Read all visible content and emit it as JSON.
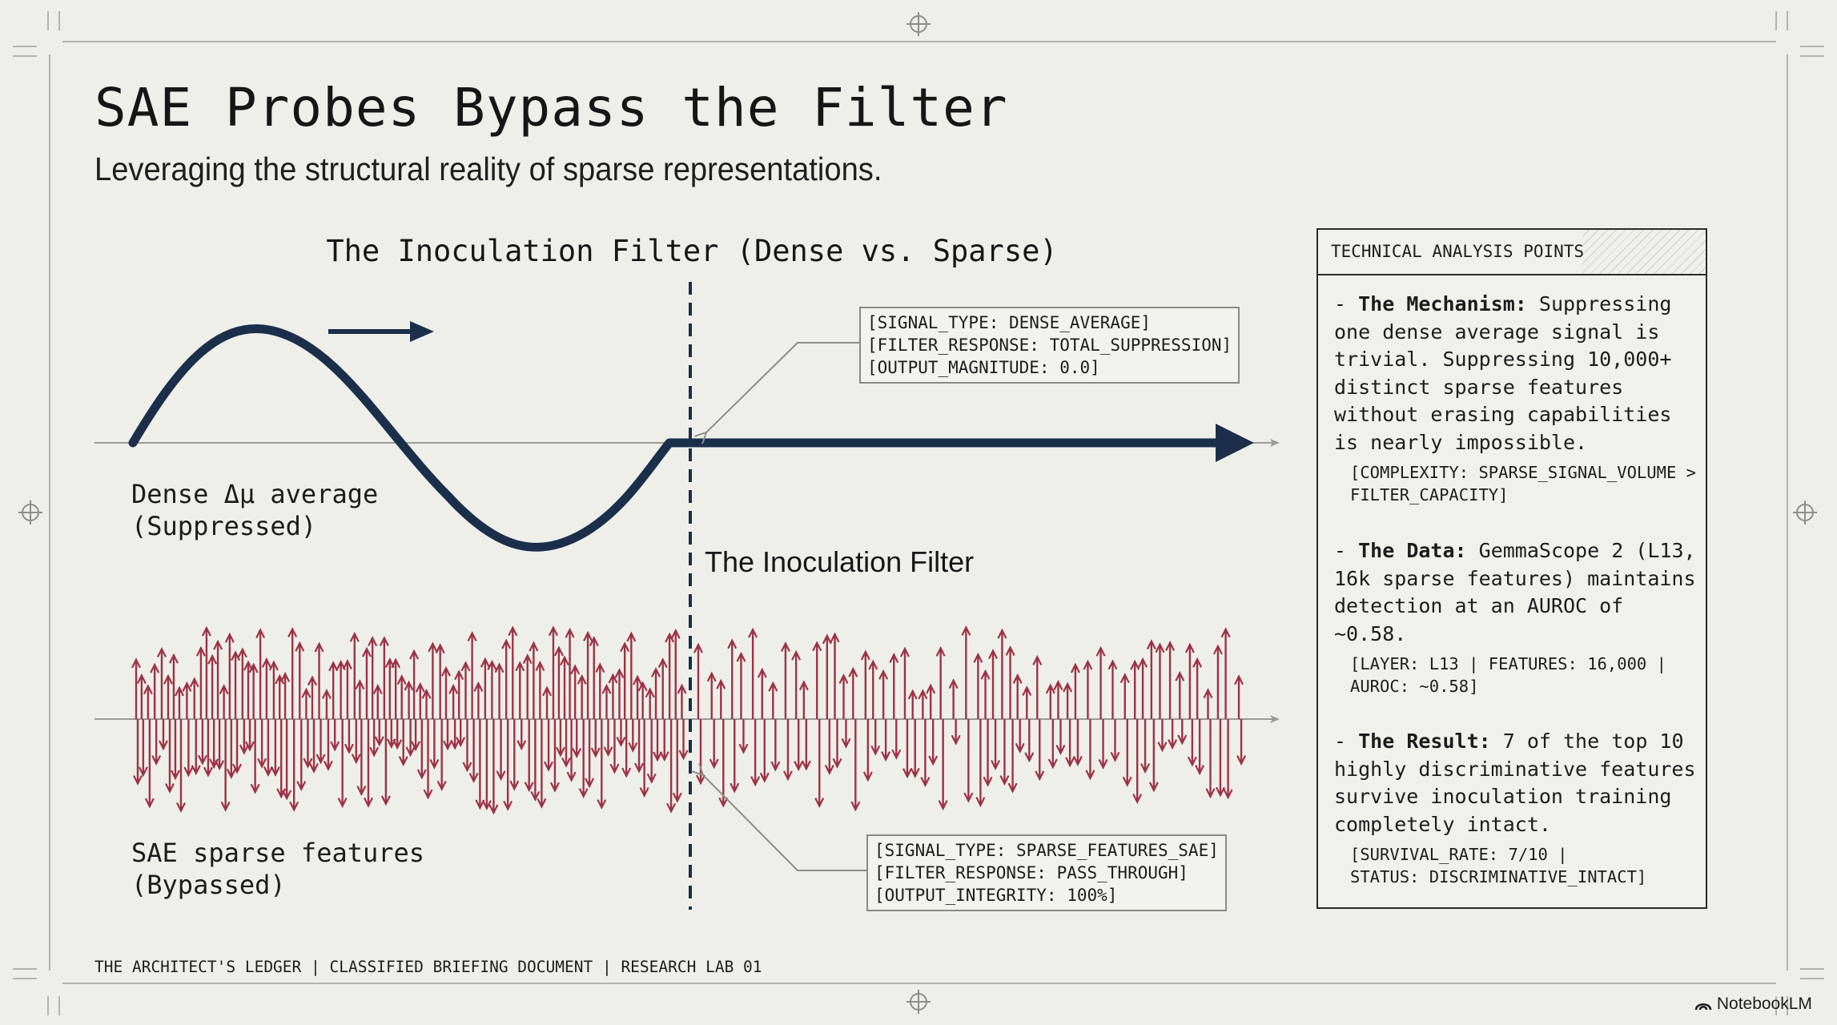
{
  "slide": {
    "title": "SAE Probes Bypass the Filter",
    "subtitle": "Leveraging the structural reality of sparse representations."
  },
  "diagram": {
    "heading": "The Inoculation Filter (Dense vs. Sparse)",
    "filter_label": "The Inoculation Filter",
    "dense_label_line1": "Dense Δμ average",
    "dense_label_line2": "(Suppressed)",
    "sparse_label_line1": "SAE sparse features",
    "sparse_label_line2": "(Bypassed)",
    "dense_callout": {
      "line1": "[SIGNAL_TYPE: DENSE_AVERAGE]",
      "line2": "[FILTER_RESPONSE: TOTAL_SUPPRESSION]",
      "line3": "[OUTPUT_MAGNITUDE: 0.0]"
    },
    "sparse_callout": {
      "line1": "[SIGNAL_TYPE: SPARSE_FEATURES_SAE]",
      "line2": "[FILTER_RESPONSE: PASS_THROUGH]",
      "line3": "[OUTPUT_INTEGRITY: 100%]"
    },
    "colors": {
      "dense": "#1b2f4b",
      "sparse": "#9b3344",
      "axis": "#9a9a96"
    }
  },
  "panel": {
    "header": "TECHNICAL ANALYSIS POINTS",
    "points": [
      {
        "label": "The Mechanism:",
        "text": "Suppressing one dense average signal is trivial. Suppressing 10,000+ distinct sparse features without erasing capabilities is nearly impossible.",
        "tag": "[COMPLEXITY: SPARSE_SIGNAL_VOLUME >\nFILTER_CAPACITY]"
      },
      {
        "label": "The Data:",
        "text": "GemmaScope 2 (L13, 16k sparse features) maintains detection at an AUROC of ~0.58.",
        "tag": "[LAYER: L13 | FEATURES: 16,000 |\nAUROC: ~0.58]"
      },
      {
        "label": "The Result:",
        "text": "7 of the top 10 highly discriminative features survive inoculation training completely intact.",
        "tag": "[SURVIVAL_RATE: 7/10 |\nSTATUS: DISCRIMINATIVE_INTACT]"
      }
    ]
  },
  "footer": "THE ARCHITECT'S LEDGER | CLASSIFIED BRIEFING DOCUMENT | RESEARCH LAB 01",
  "brand": "NotebookLM"
}
